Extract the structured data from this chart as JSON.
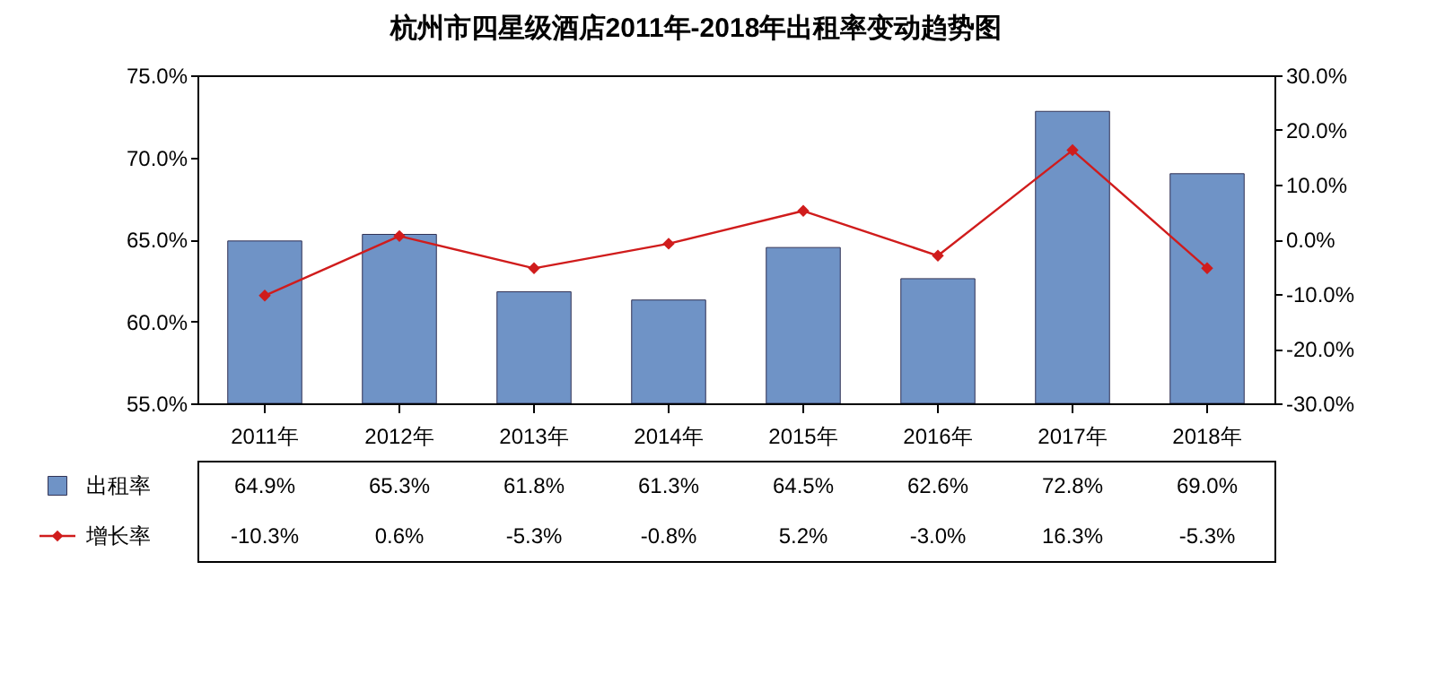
{
  "chart_data": {
    "type": "bar",
    "title": "杭州市四星级酒店2011年-2018年出租率变动趋势图",
    "categories": [
      "2011年",
      "2012年",
      "2013年",
      "2014年",
      "2015年",
      "2016年",
      "2017年",
      "2018年"
    ],
    "series": [
      {
        "name": "出租率",
        "color": "#6f93c6",
        "values": [
          64.9,
          65.3,
          61.8,
          61.3,
          64.5,
          62.6,
          72.8,
          69.0
        ],
        "value_labels": [
          "64.9%",
          "65.3%",
          "61.8%",
          "61.3%",
          "64.5%",
          "62.6%",
          "72.8%",
          "69.0%"
        ]
      },
      {
        "name": "增长率",
        "type": "line",
        "axis": "y2",
        "color": "#d01c1c",
        "values": [
          -10.3,
          0.6,
          -5.3,
          -0.8,
          5.2,
          -3.0,
          16.3,
          -5.3
        ],
        "value_labels": [
          "-10.3%",
          "0.6%",
          "-5.3%",
          "-0.8%",
          "5.2%",
          "-3.0%",
          "16.3%",
          "-5.3%"
        ]
      }
    ],
    "ylim": [
      55,
      75
    ],
    "yticks": [
      {
        "value": 55,
        "label": "55.0%"
      },
      {
        "value": 60,
        "label": "60.0%"
      },
      {
        "value": 65,
        "label": "65.0%"
      },
      {
        "value": 70,
        "label": "70.0%"
      },
      {
        "value": 75,
        "label": "75.0%"
      }
    ],
    "y2lim": [
      -30,
      30
    ],
    "y2ticks": [
      {
        "value": -30,
        "label": "-30.0%"
      },
      {
        "value": -20,
        "label": "-20.0%"
      },
      {
        "value": -10,
        "label": "-10.0%"
      },
      {
        "value": 0,
        "label": "0.0%"
      },
      {
        "value": 10,
        "label": "10.0%"
      },
      {
        "value": 20,
        "label": "20.0%"
      },
      {
        "value": 30,
        "label": "30.0%"
      }
    ],
    "marker": "diamond",
    "line_style": "solid",
    "legend": "bottom left",
    "data_labels": true
  }
}
